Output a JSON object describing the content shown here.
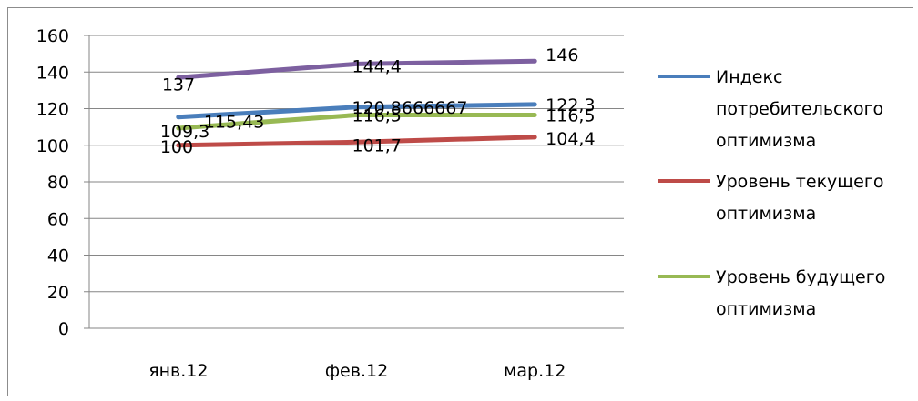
{
  "chart_data": {
    "type": "line",
    "categories": [
      "янв.12",
      "фев.12",
      "мар.12"
    ],
    "ylim": [
      0,
      160
    ],
    "yticks": [
      0,
      20,
      40,
      60,
      80,
      100,
      120,
      140,
      160
    ],
    "ytick_labels": [
      "0",
      "20",
      "40",
      "60",
      "80",
      "100",
      "120",
      "140",
      "160"
    ],
    "grid": true,
    "legend_position": "right",
    "series": [
      {
        "name": "Индекс потребительского оптимизма",
        "legend_lines": [
          "Индекс",
          "потребительского",
          "оптимизма"
        ],
        "values": [
          115.43,
          120.8666667,
          122.3
        ],
        "labels": [
          "115,43",
          "120,8666667",
          "122,3"
        ],
        "color": "#4a7ebb"
      },
      {
        "name": "Уровень текущего оптимизма",
        "legend_lines": [
          "Уровень текущего",
          "оптимизма"
        ],
        "values": [
          100,
          101.7,
          104.4
        ],
        "labels": [
          "100",
          "101,7",
          "104,4"
        ],
        "color": "#be4b48"
      },
      {
        "name": "Уровень будущего оптимизма",
        "legend_lines": [
          "Уровень будущего",
          "оптимизма"
        ],
        "values": [
          109.3,
          116.5,
          116.5
        ],
        "labels": [
          "109,3",
          "116,5",
          "116,5"
        ],
        "color": "#98b954"
      },
      {
        "name": "",
        "values": [
          137,
          144.4,
          146
        ],
        "labels": [
          "137",
          "144,4",
          "146"
        ],
        "color": "#7d60a0"
      }
    ]
  }
}
